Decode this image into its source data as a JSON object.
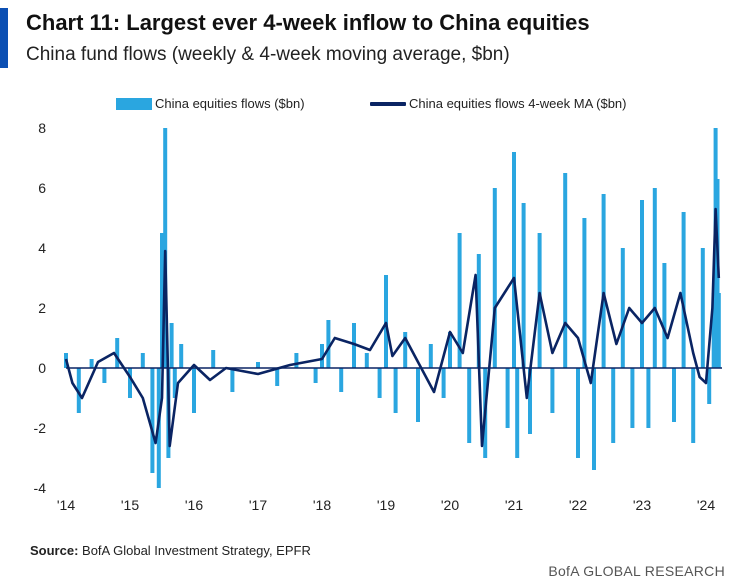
{
  "header": {
    "title": "Chart 11: Largest ever 4-week inflow to China equities",
    "subtitle": "China fund flows (weekly & 4-week moving average, $bn)"
  },
  "footer": {
    "source_label": "Source:",
    "source_text": "BofA Global Investment Strategy, EPFR",
    "brand": "BofA GLOBAL RESEARCH"
  },
  "colors": {
    "accent": "#0b4fb3",
    "bars": "#2aa6e0",
    "ma_line": "#0a2463",
    "zero_line": "#0a2463"
  },
  "chart_data": {
    "type": "bar",
    "title": "Chart 11: Largest ever 4-week inflow to China equities",
    "subtitle": "China fund flows (weekly & 4-week moving average, $bn)",
    "xlabel": "",
    "ylabel": "",
    "x_tick_labels": [
      "'14",
      "'15",
      "'16",
      "'17",
      "'18",
      "'19",
      "'20",
      "'21",
      "'22",
      "'23",
      "'24"
    ],
    "x_tick_years": [
      2014,
      2015,
      2016,
      2017,
      2018,
      2019,
      2020,
      2021,
      2022,
      2023,
      2024
    ],
    "y_tick_labels": [
      "8",
      "6",
      "4",
      "2",
      "0",
      "-2",
      "-4"
    ],
    "y_tick_values": [
      8,
      6,
      4,
      2,
      0,
      -2,
      -4
    ],
    "ylim": [
      -4,
      8
    ],
    "xlim": [
      2014.0,
      2024.25
    ],
    "grid": false,
    "legend_position": "top",
    "series": [
      {
        "name": "China equities flows ($bn)",
        "kind": "bar",
        "x": [
          2014.0,
          2014.2,
          2014.4,
          2014.6,
          2014.8,
          2015.0,
          2015.2,
          2015.35,
          2015.45,
          2015.5,
          2015.55,
          2015.6,
          2015.65,
          2015.7,
          2015.8,
          2016.0,
          2016.3,
          2016.6,
          2017.0,
          2017.3,
          2017.6,
          2017.9,
          2018.0,
          2018.1,
          2018.3,
          2018.5,
          2018.7,
          2018.9,
          2019.0,
          2019.15,
          2019.3,
          2019.5,
          2019.7,
          2019.9,
          2020.0,
          2020.15,
          2020.3,
          2020.45,
          2020.55,
          2020.7,
          2020.9,
          2021.0,
          2021.05,
          2021.15,
          2021.25,
          2021.4,
          2021.6,
          2021.8,
          2022.0,
          2022.1,
          2022.25,
          2022.4,
          2022.55,
          2022.7,
          2022.85,
          2023.0,
          2023.1,
          2023.2,
          2023.35,
          2023.5,
          2023.65,
          2023.8,
          2023.95,
          2024.05,
          2024.12,
          2024.15,
          2024.18,
          2024.2
        ],
        "values": [
          0.5,
          -1.5,
          0.3,
          -0.5,
          1.0,
          -1.0,
          0.5,
          -3.5,
          -4.0,
          4.5,
          8.0,
          -3.0,
          1.5,
          -1.0,
          0.8,
          -1.5,
          0.6,
          -0.8,
          0.2,
          -0.6,
          0.5,
          -0.5,
          0.8,
          1.6,
          -0.8,
          1.5,
          0.5,
          -1.0,
          3.1,
          -1.5,
          1.2,
          -1.8,
          0.8,
          -1.0,
          1.2,
          4.5,
          -2.5,
          3.8,
          -3.0,
          6.0,
          -2.0,
          7.2,
          -3.0,
          5.5,
          -2.2,
          4.5,
          -1.5,
          6.5,
          -3.0,
          5.0,
          -3.4,
          5.8,
          -2.5,
          4.0,
          -2.0,
          5.6,
          -2.0,
          6.0,
          3.5,
          -1.8,
          5.2,
          -2.5,
          4.0,
          -1.2,
          2.5,
          8.0,
          6.3,
          2.5
        ]
      },
      {
        "name": "China equities flows 4-week MA ($bn)",
        "kind": "line",
        "x": [
          2014.0,
          2014.1,
          2014.25,
          2014.5,
          2014.75,
          2015.0,
          2015.2,
          2015.4,
          2015.5,
          2015.55,
          2015.62,
          2015.75,
          2016.0,
          2016.25,
          2016.5,
          2017.0,
          2017.5,
          2018.0,
          2018.2,
          2018.5,
          2018.75,
          2019.0,
          2019.1,
          2019.3,
          2019.5,
          2019.75,
          2020.0,
          2020.2,
          2020.4,
          2020.5,
          2020.7,
          2021.0,
          2021.2,
          2021.4,
          2021.6,
          2021.8,
          2022.0,
          2022.2,
          2022.4,
          2022.6,
          2022.8,
          2023.0,
          2023.2,
          2023.4,
          2023.6,
          2023.8,
          2023.9,
          2024.0,
          2024.1,
          2024.15,
          2024.2
        ],
        "values": [
          0.3,
          -0.5,
          -1.0,
          0.2,
          0.5,
          -0.3,
          -1.0,
          -2.5,
          -1.0,
          3.9,
          -2.6,
          -0.5,
          0.1,
          -0.4,
          0.0,
          -0.2,
          0.1,
          0.3,
          1.0,
          0.8,
          0.6,
          1.5,
          0.4,
          1.0,
          0.2,
          -0.8,
          1.2,
          0.5,
          3.1,
          -2.6,
          2.0,
          3.0,
          -1.0,
          2.5,
          0.5,
          1.5,
          1.0,
          -0.5,
          2.5,
          0.8,
          2.0,
          1.5,
          2.0,
          1.0,
          2.5,
          0.5,
          -0.3,
          -0.5,
          2.0,
          5.3,
          3.0
        ]
      }
    ]
  }
}
